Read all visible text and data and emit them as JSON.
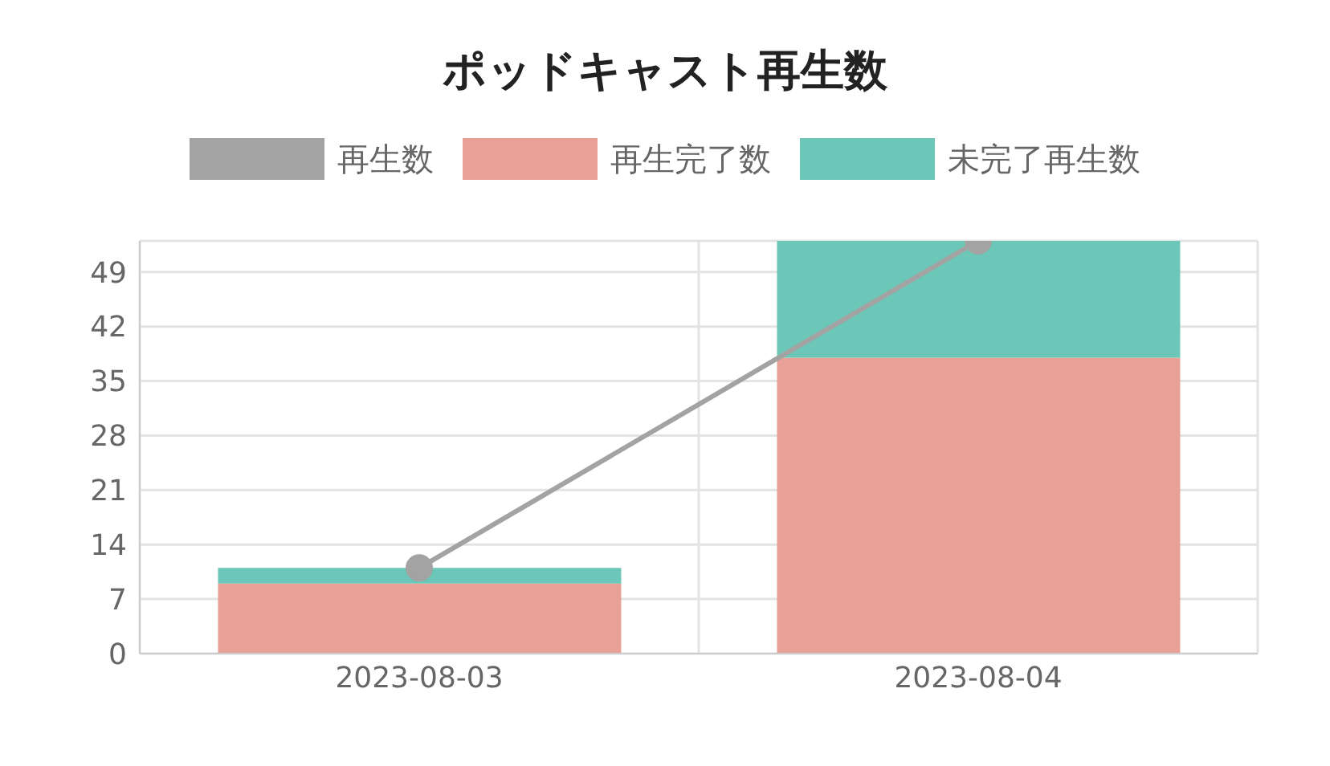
{
  "chart_data": {
    "type": "bar",
    "title": "ポッドキャスト再生数",
    "categories": [
      "2023-08-03",
      "2023-08-04"
    ],
    "stacked": true,
    "series": [
      {
        "name": "再生数",
        "type": "line",
        "color": "#a3a3a3",
        "values": [
          11,
          53
        ]
      },
      {
        "name": "再生完了数",
        "color": "#e8a097",
        "values": [
          9,
          38
        ]
      },
      {
        "name": "未完了再生数",
        "color": "#6cc7b9",
        "values": [
          2,
          15
        ]
      }
    ],
    "ylim": [
      0,
      53
    ],
    "yticks": [
      0,
      7,
      14,
      21,
      28,
      35,
      42,
      49
    ],
    "grid": true,
    "legend": "top",
    "marker": "circle"
  }
}
